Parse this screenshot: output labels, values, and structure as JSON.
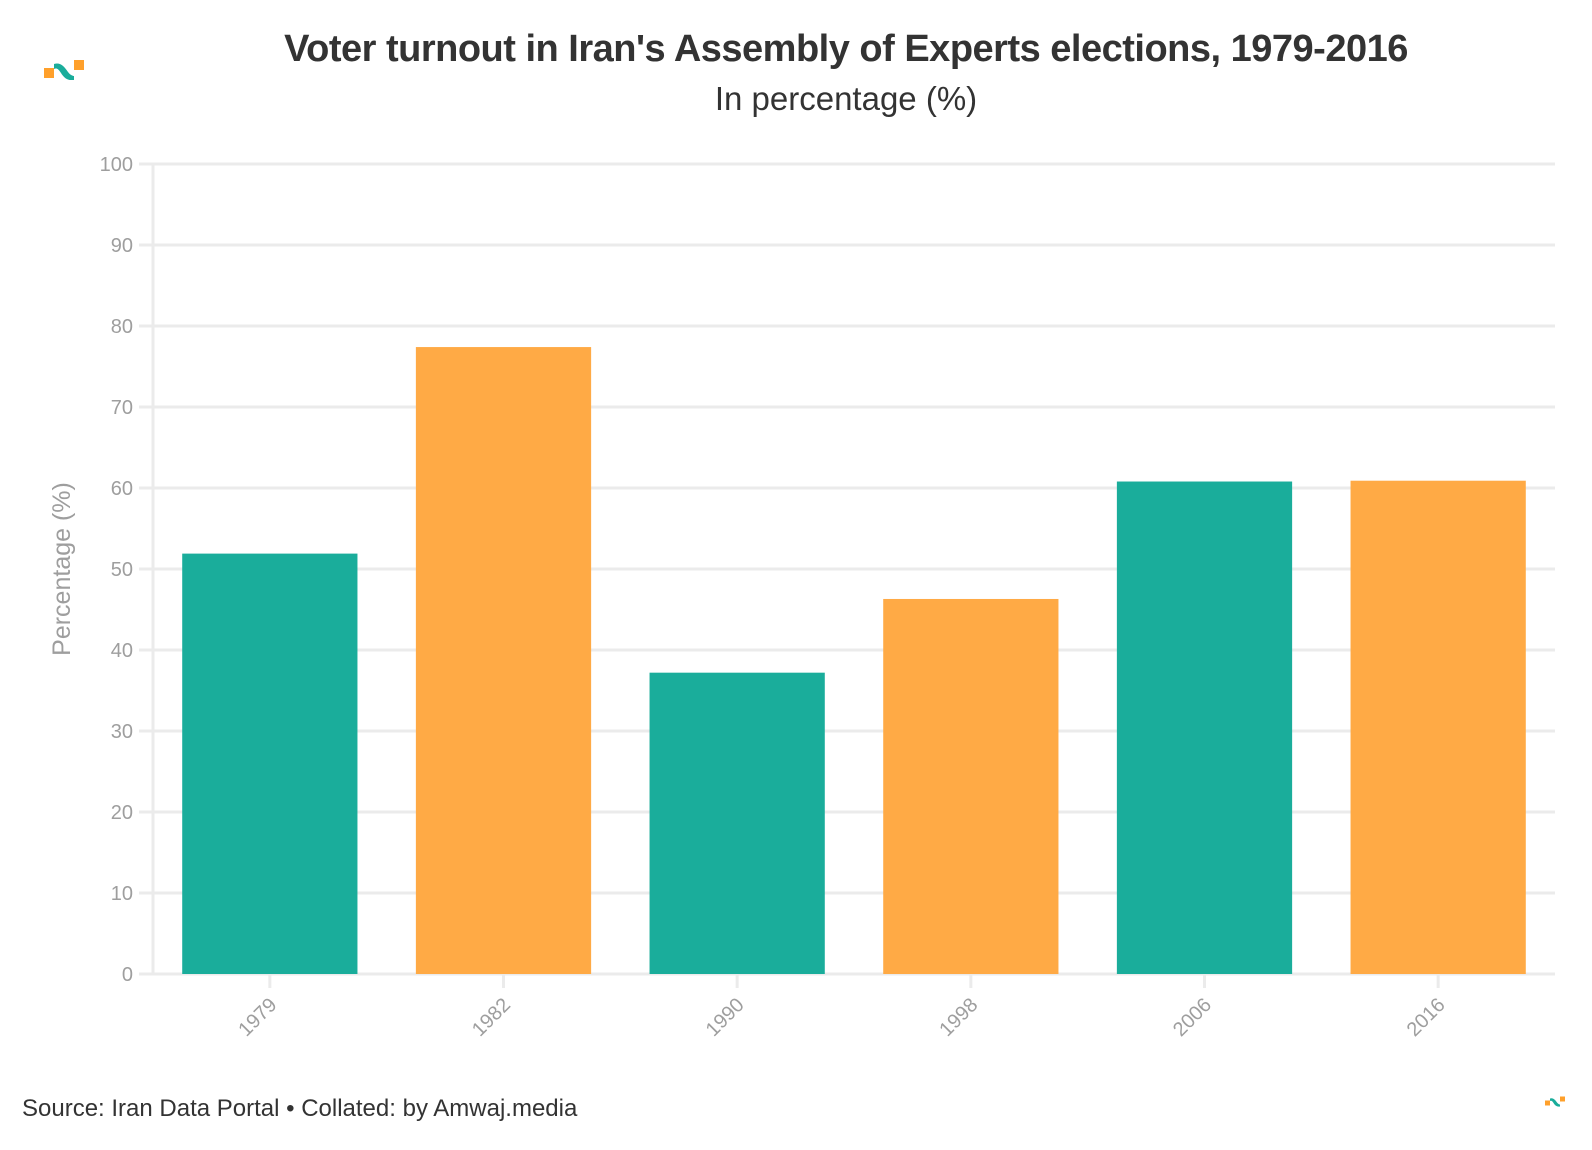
{
  "header": {
    "title": "Voter turnout in Iran's Assembly of Experts elections, 1979-2016",
    "subtitle": "In percentage (%)"
  },
  "footer": {
    "source": "Source: Iran Data Portal • Collated: by Amwaj.media"
  },
  "brand": {
    "logo_icon": "amwaj-logo-icon",
    "colors": {
      "teal": "#1aad9b",
      "orange": "#ffaa45"
    }
  },
  "chart_data": {
    "type": "bar",
    "title": "Voter turnout in Iran's Assembly of Experts elections, 1979-2016",
    "subtitle": "In percentage (%)",
    "xlabel": "",
    "ylabel": "Percentage (%)",
    "categories": [
      "1979",
      "1982",
      "1990",
      "1998",
      "2006",
      "2016"
    ],
    "values": [
      51.9,
      77.4,
      37.2,
      46.3,
      60.8,
      60.9
    ],
    "bar_colors": [
      "#1aad9b",
      "#ffaa45",
      "#1aad9b",
      "#ffaa45",
      "#1aad9b",
      "#ffaa45"
    ],
    "ylim": [
      0,
      100
    ],
    "yticks": [
      0,
      10,
      20,
      30,
      40,
      50,
      60,
      70,
      80,
      90,
      100
    ],
    "grid": true,
    "xtick_rotation": -45,
    "legend": "none",
    "source": "Iran Data Portal"
  }
}
